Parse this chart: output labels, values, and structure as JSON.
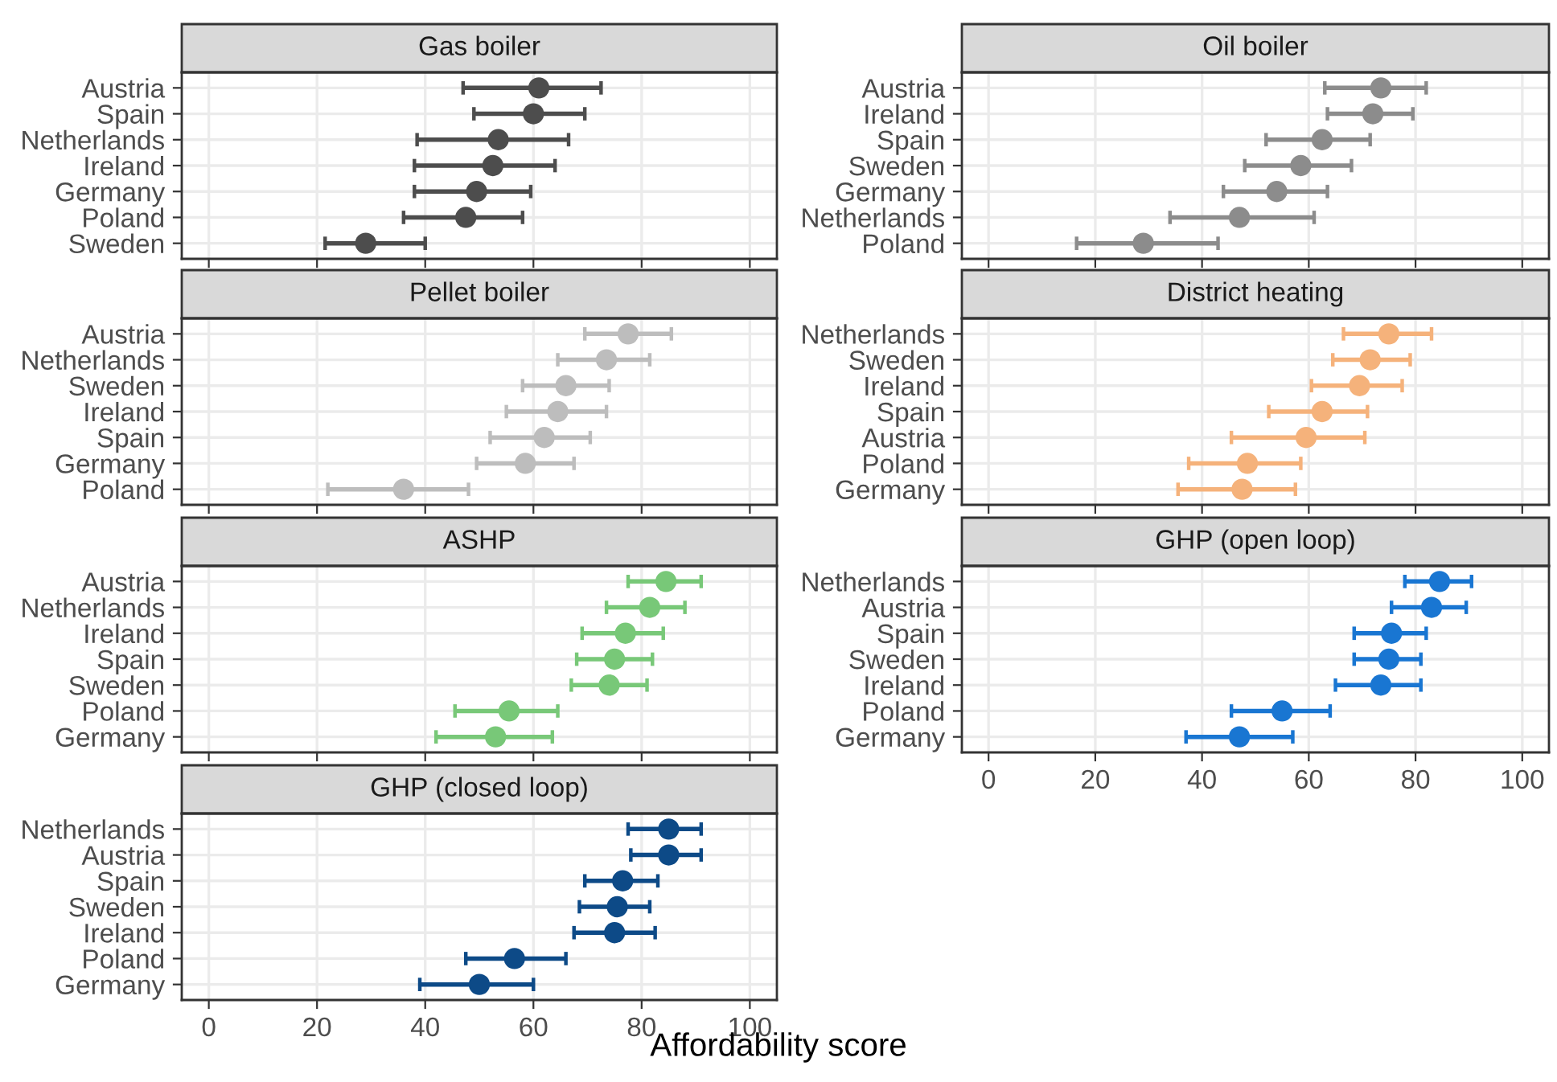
{
  "chart_data": [
    {
      "type": "scatter",
      "orientation": "horizontal",
      "title": "Gas boiler",
      "categories": [
        "Austria",
        "Spain",
        "Netherlands",
        "Ireland",
        "Germany",
        "Poland",
        "Sweden"
      ],
      "color": "#4d4d4d",
      "values": [
        61,
        60,
        53.5,
        52.5,
        49.5,
        47.5,
        29
      ],
      "errors": [
        [
          47,
          72.5
        ],
        [
          49,
          69.5
        ],
        [
          38.5,
          66.5
        ],
        [
          38,
          64
        ],
        [
          38,
          59.5
        ],
        [
          36,
          58
        ],
        [
          21.5,
          40
        ]
      ],
      "xlim": [
        -5,
        105
      ],
      "xticks": [
        0,
        20,
        40,
        60,
        80,
        100
      ],
      "grid": true,
      "marker": "circle",
      "tick_labels": "y"
    },
    {
      "type": "scatter",
      "orientation": "horizontal",
      "title": "Oil boiler",
      "categories": [
        "Austria",
        "Ireland",
        "Spain",
        "Sweden",
        "Germany",
        "Netherlands",
        "Poland"
      ],
      "color": "#8c8c8c",
      "values": [
        73.5,
        72,
        62.5,
        58.5,
        54,
        47,
        29
      ],
      "errors": [
        [
          63,
          82
        ],
        [
          63.5,
          79.5
        ],
        [
          52,
          71.5
        ],
        [
          48,
          68
        ],
        [
          44,
          63.5
        ],
        [
          34,
          61
        ],
        [
          16.5,
          43
        ]
      ],
      "xlim": [
        -5,
        105
      ],
      "xticks": [
        0,
        20,
        40,
        60,
        80,
        100
      ],
      "grid": true,
      "marker": "circle",
      "tick_labels": "y"
    },
    {
      "type": "scatter",
      "orientation": "horizontal",
      "title": "Pellet boiler",
      "categories": [
        "Austria",
        "Netherlands",
        "Sweden",
        "Ireland",
        "Spain",
        "Germany",
        "Poland"
      ],
      "color": "#bdbdbd",
      "values": [
        77.5,
        73.5,
        66,
        64.5,
        62,
        58.5,
        36
      ],
      "errors": [
        [
          69.5,
          85.5
        ],
        [
          64.5,
          81.5
        ],
        [
          58,
          74
        ],
        [
          55,
          73.5
        ],
        [
          52,
          70.5
        ],
        [
          49.5,
          67.5
        ],
        [
          22,
          48
        ]
      ],
      "xlim": [
        -5,
        105
      ],
      "xticks": [
        0,
        20,
        40,
        60,
        80,
        100
      ],
      "grid": true,
      "marker": "circle",
      "tick_labels": "y"
    },
    {
      "type": "scatter",
      "orientation": "horizontal",
      "title": "District heating",
      "categories": [
        "Netherlands",
        "Sweden",
        "Ireland",
        "Spain",
        "Austria",
        "Poland",
        "Germany"
      ],
      "color": "#f5b27b",
      "values": [
        75,
        71.5,
        69.5,
        62.5,
        59.5,
        48.5,
        47.5
      ],
      "errors": [
        [
          66.5,
          83
        ],
        [
          64.5,
          79
        ],
        [
          60.5,
          77.5
        ],
        [
          52.5,
          71
        ],
        [
          45.5,
          70.5
        ],
        [
          37.5,
          58.5
        ],
        [
          35.5,
          57.5
        ]
      ],
      "xlim": [
        -5,
        105
      ],
      "xticks": [
        0,
        20,
        40,
        60,
        80,
        100
      ],
      "grid": true,
      "marker": "circle",
      "tick_labels": "y"
    },
    {
      "type": "scatter",
      "orientation": "horizontal",
      "title": "ASHP",
      "categories": [
        "Austria",
        "Netherlands",
        "Ireland",
        "Spain",
        "Sweden",
        "Poland",
        "Germany"
      ],
      "color": "#78c878",
      "values": [
        84.5,
        81.5,
        77,
        75,
        74,
        55.5,
        53
      ],
      "errors": [
        [
          77.5,
          91
        ],
        [
          73.5,
          88
        ],
        [
          69,
          84
        ],
        [
          68,
          82
        ],
        [
          67,
          81
        ],
        [
          45.5,
          64.5
        ],
        [
          42,
          63.5
        ]
      ],
      "xlim": [
        -5,
        105
      ],
      "xticks": [
        0,
        20,
        40,
        60,
        80,
        100
      ],
      "grid": true,
      "marker": "circle",
      "tick_labels": "y"
    },
    {
      "type": "scatter",
      "orientation": "horizontal",
      "title": "GHP (open loop)",
      "categories": [
        "Netherlands",
        "Austria",
        "Spain",
        "Sweden",
        "Ireland",
        "Poland",
        "Germany"
      ],
      "color": "#1976d2",
      "values": [
        84.5,
        83,
        75.5,
        75,
        73.5,
        55,
        47
      ],
      "errors": [
        [
          78,
          90.5
        ],
        [
          75.5,
          89.5
        ],
        [
          68.5,
          82
        ],
        [
          68.5,
          81
        ],
        [
          65,
          81
        ],
        [
          45.5,
          64
        ],
        [
          37,
          57
        ]
      ],
      "xlim": [
        -5,
        105
      ],
      "xticks": [
        0,
        20,
        40,
        60,
        80,
        100
      ],
      "grid": true,
      "marker": "circle"
    },
    {
      "type": "scatter",
      "orientation": "horizontal",
      "title": "GHP (closed loop)",
      "xlabel": "Affordability score",
      "categories": [
        "Netherlands",
        "Austria",
        "Spain",
        "Sweden",
        "Ireland",
        "Poland",
        "Germany"
      ],
      "color": "#0d4a87",
      "values": [
        85,
        85,
        76.5,
        75.5,
        75,
        56.5,
        50
      ],
      "errors": [
        [
          77.5,
          91
        ],
        [
          78,
          91
        ],
        [
          69.5,
          83
        ],
        [
          68.5,
          81.5
        ],
        [
          67.5,
          82.5
        ],
        [
          47.5,
          66
        ],
        [
          39,
          60
        ]
      ],
      "xlim": [
        -5,
        105
      ],
      "xticks": [
        0,
        20,
        40,
        60,
        80,
        100
      ],
      "grid": true,
      "marker": "circle"
    }
  ]
}
